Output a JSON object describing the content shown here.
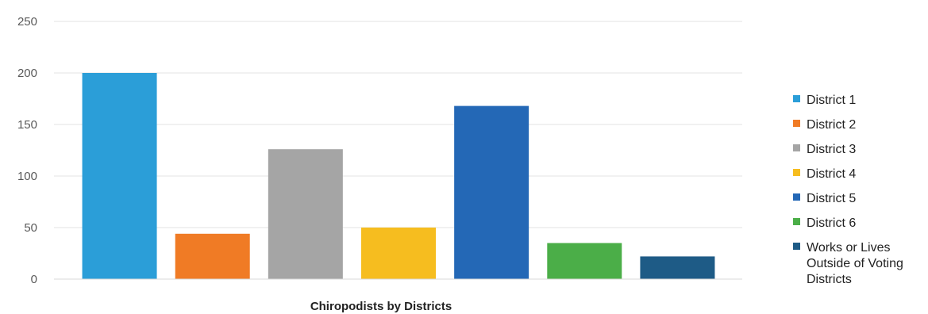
{
  "chart_data": {
    "type": "bar",
    "title": "",
    "xlabel": "Chiropodists by Districts",
    "ylabel": "",
    "ylim": [
      0,
      250
    ],
    "yticks": [
      0,
      50,
      100,
      150,
      200,
      250
    ],
    "grid": true,
    "legend_position": "right",
    "series": [
      {
        "name": "District 1",
        "value": 200,
        "color": "#2b9ed8"
      },
      {
        "name": "District 2",
        "value": 44,
        "color": "#f07b25"
      },
      {
        "name": "District 3",
        "value": 126,
        "color": "#a5a5a5"
      },
      {
        "name": "District 4",
        "value": 50,
        "color": "#f6bd1f"
      },
      {
        "name": "District 5",
        "value": 168,
        "color": "#2468b6"
      },
      {
        "name": "District 6",
        "value": 35,
        "color": "#4bae48"
      },
      {
        "name": "Works or Lives Outside of Voting Districts",
        "legend_lines": [
          "Works or Lives",
          "Outside of Voting",
          "Districts"
        ],
        "value": 22,
        "color": "#1e5b86"
      }
    ]
  }
}
